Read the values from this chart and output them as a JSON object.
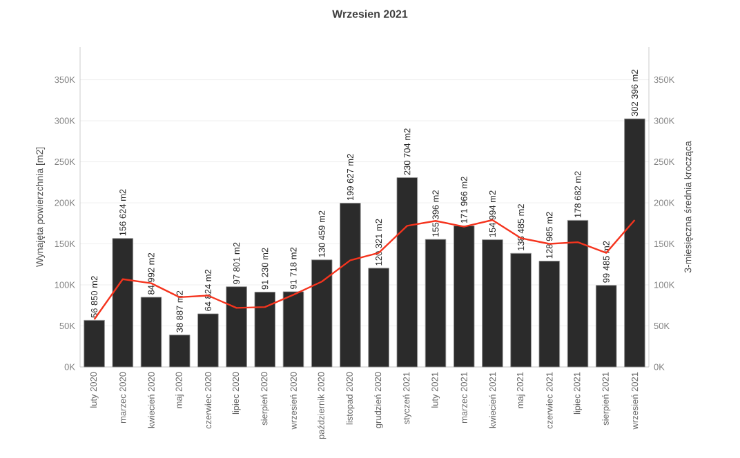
{
  "chart_data": {
    "type": "bar",
    "title": "Wrzesien 2021",
    "ylabel": "Wynajęta powierzchnia [m2]",
    "y2label": "3-miesięczna średnia krocząca",
    "categories": [
      "luty 2020",
      "marzec 2020",
      "kwiecień 2020",
      "maj 2020",
      "czerwiec 2020",
      "lipiec 2020",
      "sierpień 2020",
      "wrzesień 2020",
      "październik 2020",
      "listopad 2020",
      "grudzień 2020",
      "styczeń 2021",
      "luty 2021",
      "marzec 2021",
      "kwiecień 2021",
      "maj 2021",
      "czerwiec 2021",
      "lipiec 2021",
      "sierpień 2021",
      "wrzesień 2021"
    ],
    "series": [
      {
        "color": "#2b2b2b",
        "values": [
          56850,
          156624,
          84992,
          38887,
          64824,
          97801,
          91230,
          91718,
          130459,
          199627,
          120321,
          230704,
          155396,
          171966,
          154994,
          138485,
          128985,
          178682,
          99485,
          302396
        ],
        "value_labels": [
          "56 850 m2",
          "156 624 m2",
          "84 992 m2",
          "38 887 m2",
          "64 824 m2",
          "97 801 m2",
          "91 230 m2",
          "91 718 m2",
          "130 459 m2",
          "199 627 m2",
          "120 321 m2",
          "230 704 m2",
          "155 396 m2",
          "171 966 m2",
          "154 994 m2",
          "138 485 m2",
          "128 985 m2",
          "178 682 m2",
          "99 485 m2",
          "302 396 m2"
        ]
      },
      {
        "type": "line",
        "axis": "y2",
        "color": "#f5341e",
        "values": [
          58000,
          107000,
          102000,
          85000,
          87000,
          72000,
          73000,
          88000,
          104000,
          130000,
          139000,
          172000,
          178000,
          171000,
          179000,
          157000,
          150000,
          152000,
          139000,
          179000
        ]
      }
    ],
    "ylim": [
      0,
      390000
    ],
    "yticks": [
      {
        "value": 0,
        "label": "0K"
      },
      {
        "value": 50000,
        "label": "50K"
      },
      {
        "value": 100000,
        "label": "100K"
      },
      {
        "value": 150000,
        "label": "150K"
      },
      {
        "value": 200000,
        "label": "200K"
      },
      {
        "value": 250000,
        "label": "250K"
      },
      {
        "value": 300000,
        "label": "300K"
      },
      {
        "value": 350000,
        "label": "350K"
      }
    ],
    "y2lim": [
      0,
      390000
    ],
    "y2ticks": [
      {
        "value": 0,
        "label": "0K"
      },
      {
        "value": 50000,
        "label": "50K"
      },
      {
        "value": 100000,
        "label": "100K"
      },
      {
        "value": 150000,
        "label": "150K"
      },
      {
        "value": 200000,
        "label": "200K"
      },
      {
        "value": 250000,
        "label": "250K"
      },
      {
        "value": 300000,
        "label": "300K"
      },
      {
        "value": 350000,
        "label": "350K"
      }
    ],
    "grid": "y"
  }
}
